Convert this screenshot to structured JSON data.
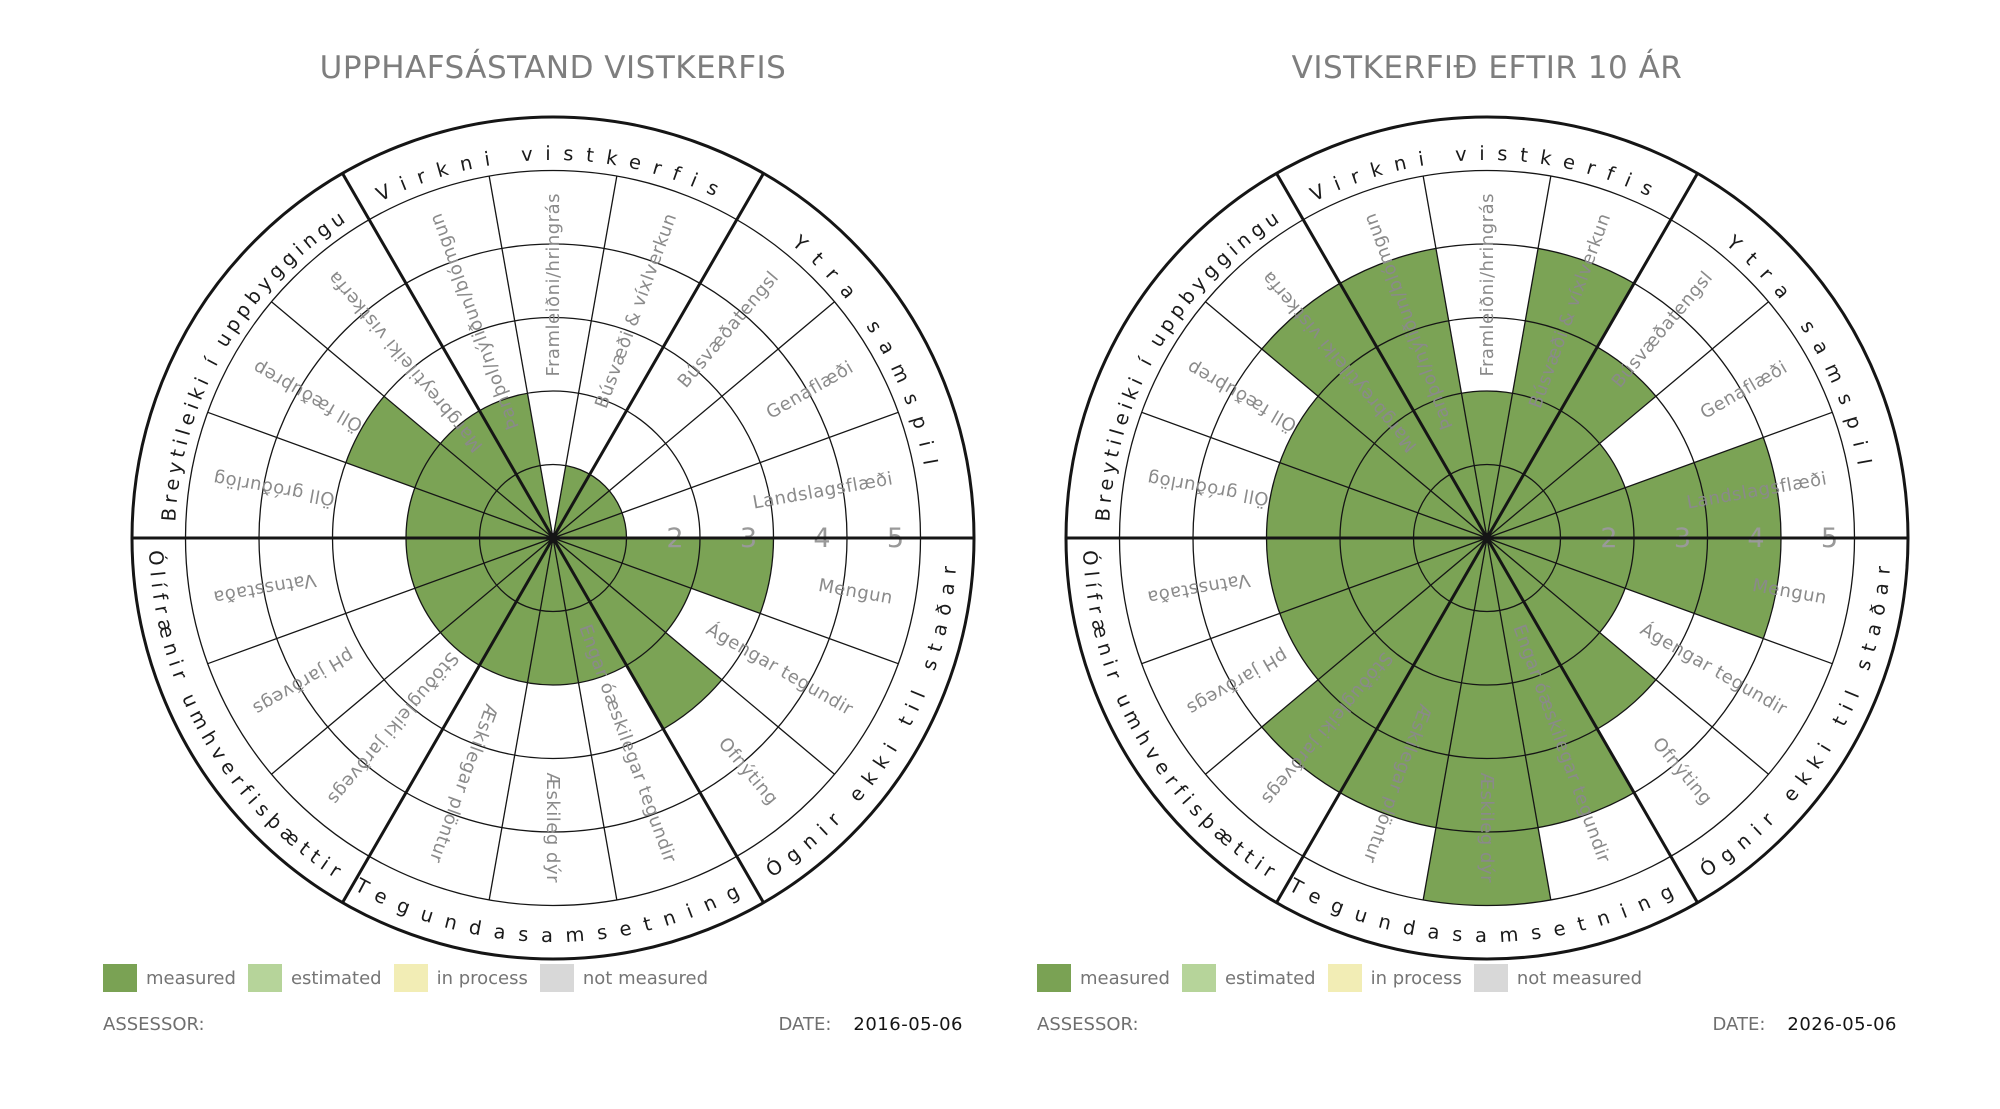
{
  "charts": [
    {
      "title": "UPPHAFSÁSTAND VISTKERFIS",
      "assessor_label": "ASSESSOR:",
      "date_label": "DATE:",
      "date_value": "2016-05-06"
    },
    {
      "title": "VISTKERFIÐ EFTIR 10 ÁR",
      "assessor_label": "ASSESSOR:",
      "date_label": "DATE:",
      "date_value": "2026-05-06"
    }
  ],
  "legend": {
    "items": [
      {
        "label": "measured",
        "color": "#7AA254"
      },
      {
        "label": "estimated",
        "color": "#B6D49A"
      },
      {
        "label": "in process",
        "color": "#F2EDB5"
      },
      {
        "label": "not measured",
        "color": "#D8D8D8"
      }
    ]
  },
  "chart_data": {
    "type": "radial-sector-wheel (ecological recovery wheel), two charts side by side",
    "scale": {
      "min": 0,
      "max": 5,
      "rings": 5,
      "ring_tick_labels": [
        "2",
        "3",
        "4",
        "5"
      ]
    },
    "sector_angle_deg": 20,
    "spokes": [
      "Landslagsflæði",
      "Genaflæði",
      "Búsvæðatengsl",
      "Búsvæði & víxlverkun",
      "Framleiðni/hringrás",
      "Þanþol/nýliðun/blómgun",
      "Margbreytileiki vistkerfa",
      "Öll fæðuþrep",
      "Öll gróðurlög",
      "Vatnsstaða",
      "pH jarðvegs",
      "Stöðugleiki jarðvegs",
      "Æskilegar plöntur",
      "Æskileg dýr",
      "Engar óæskilegar tegundir",
      "Ofnýting",
      "Ágengar tegundir",
      "Mengun"
    ],
    "spoke_angles_note": "18 spokes of 20° each, listed counterclockwise starting at 3 o'clock",
    "categories": [
      {
        "label": "Ytra samspil",
        "start_deg": 0,
        "end_deg": 60
      },
      {
        "label": "Virkni vistkerfis",
        "start_deg": 60,
        "end_deg": 120
      },
      {
        "label": "Breytileiki í uppbyggingu",
        "start_deg": 120,
        "end_deg": 180
      },
      {
        "label": "Ólífrænir umhverfisþættir",
        "start_deg": 180,
        "end_deg": 240
      },
      {
        "label": "Tegundasamsetning",
        "start_deg": 240,
        "end_deg": 300
      },
      {
        "label": "Ógnir ekki til staðar",
        "start_deg": 300,
        "end_deg": 360
      }
    ],
    "series": [
      {
        "name": "UPPHAFSÁSTAND VISTKERFIS",
        "date": "2016-05-06",
        "status": "measured",
        "values": [
          1,
          1,
          1,
          1,
          0,
          2,
          2,
          3,
          2,
          2,
          2,
          2,
          2,
          2,
          2,
          3,
          2,
          3
        ]
      },
      {
        "name": "VISTKERFIÐ EFTIR 10 ÁR",
        "date": "2026-05-06",
        "status": "measured",
        "values": [
          4,
          2,
          3,
          4,
          2,
          4,
          4,
          3,
          3,
          3,
          3,
          4,
          4,
          5,
          4,
          3,
          2,
          4
        ]
      }
    ],
    "colors": {
      "measured_fill": "#7BA355",
      "grid": "#151515",
      "spoke_label_text": "#8a8a8a",
      "category_text": "#1a1a1a",
      "ring_digit_text": "#999999",
      "title_text": "#7e7e7e"
    }
  }
}
